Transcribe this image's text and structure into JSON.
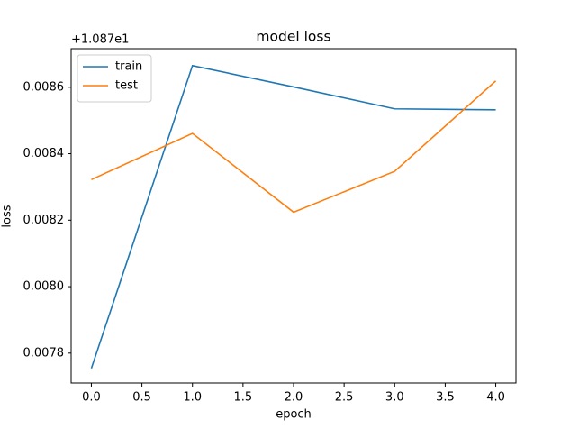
{
  "chart_data": {
    "type": "line",
    "title": "model loss",
    "x_label": "epoch",
    "y_label": "loss",
    "y_offset_label": "+1.087e1",
    "x": [
      0,
      1,
      2,
      3,
      4
    ],
    "series": [
      {
        "name": "train",
        "color": "#1f77b4",
        "values": [
          0.007754,
          0.008665,
          0.008601,
          0.008535,
          0.008532
        ]
      },
      {
        "name": "test",
        "color": "#ff7f0e",
        "values": [
          0.008322,
          0.008461,
          0.008224,
          0.008347,
          0.008619
        ]
      }
    ],
    "xlim": [
      -0.2,
      4.2
    ],
    "xticks": [
      {
        "value": 0,
        "label": "0.0"
      },
      {
        "value": 0.5,
        "label": "0.5"
      },
      {
        "value": 1,
        "label": "1.0"
      },
      {
        "value": 1.5,
        "label": "1.5"
      },
      {
        "value": 2,
        "label": "2.0"
      },
      {
        "value": 2.5,
        "label": "2.5"
      },
      {
        "value": 3,
        "label": "3.0"
      },
      {
        "value": 3.5,
        "label": "3.5"
      },
      {
        "value": 4,
        "label": "4.0"
      }
    ],
    "ylim": [
      0.00771,
      0.008716
    ],
    "yticks": [
      {
        "value": 0.0078,
        "label": "0.0078"
      },
      {
        "value": 0.008,
        "label": "0.0080"
      },
      {
        "value": 0.0082,
        "label": "0.0082"
      },
      {
        "value": 0.0084,
        "label": "0.0084"
      },
      {
        "value": 0.0086,
        "label": "0.0086"
      }
    ],
    "legend": "upper left",
    "grid": false
  }
}
